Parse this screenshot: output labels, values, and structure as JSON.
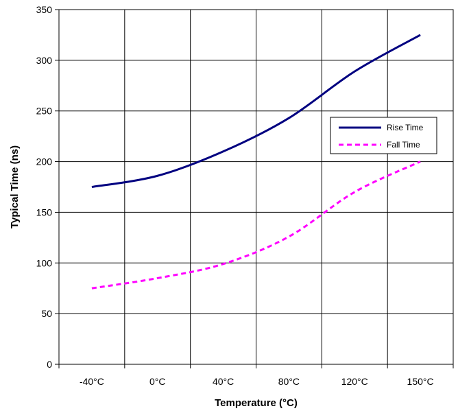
{
  "chart_data": {
    "type": "line",
    "title": "",
    "xlabel": "Temperature (°C)",
    "ylabel": "Typical Time (ns)",
    "categories": [
      "-40°C",
      "0°C",
      "40°C",
      "80°C",
      "120°C",
      "150°C"
    ],
    "ylim": [
      0,
      350
    ],
    "yticks": [
      "0",
      "50",
      "100",
      "150",
      "200",
      "250",
      "300",
      "350"
    ],
    "grid": true,
    "legend_position": "right",
    "series": [
      {
        "name": "Rise Time",
        "values": [
          175,
          186,
          210,
          243,
          289,
          325
        ],
        "color": "#000080",
        "style": "solid"
      },
      {
        "name": "Fall Time",
        "values": [
          75,
          85,
          99,
          126,
          170,
          200
        ],
        "color": "#ff00ff",
        "style": "dashed"
      }
    ]
  }
}
